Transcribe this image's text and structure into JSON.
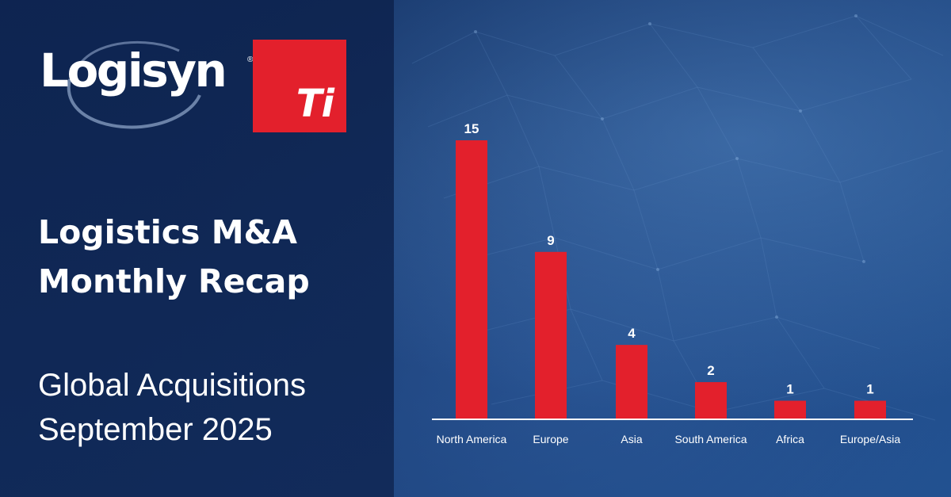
{
  "brand": {
    "logo_text": "Logisyn",
    "logo_mark": "®",
    "partner_logo_text": "Ti",
    "accent_color": "#e3202c"
  },
  "headline": {
    "line1": "Logistics M&A",
    "line2": "Monthly Recap"
  },
  "subheadline": {
    "line1": "Global Acquisitions",
    "line2": "September 2025"
  },
  "chart_data": {
    "type": "bar",
    "title": "",
    "xlabel": "",
    "ylabel": "",
    "categories": [
      "North America",
      "Europe",
      "Asia",
      "South America",
      "Africa",
      "Europe/Asia"
    ],
    "values": [
      15,
      9,
      4,
      2,
      1,
      1
    ],
    "ylim": [
      0,
      15
    ],
    "grid": false,
    "bar_color": "#e3202c",
    "data_labels": true
  }
}
